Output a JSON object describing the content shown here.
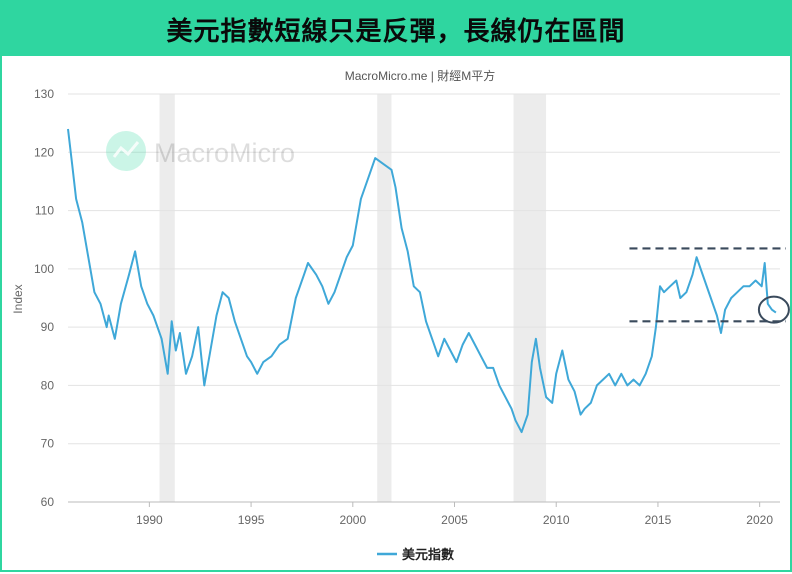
{
  "banner": {
    "title": "美元指數短線只是反彈，長線仍在區間"
  },
  "chart_data": {
    "type": "line",
    "source": "MacroMicro.me | 財經M平方",
    "watermark": "MacroMicro",
    "ylabel": "Index",
    "xlabel": "",
    "ylim": [
      60,
      130
    ],
    "xlim": [
      1986,
      2021
    ],
    "yticks": [
      60,
      70,
      80,
      90,
      100,
      110,
      120,
      130
    ],
    "xticks": [
      1990,
      1995,
      2000,
      2005,
      2010,
      2015,
      2020
    ],
    "recessions": [
      [
        1990.5,
        1991.25
      ],
      [
        2001.2,
        2001.9
      ],
      [
        2007.9,
        2009.5
      ]
    ],
    "legend": "bottom-center",
    "reference_lines": [
      103.5,
      91
    ],
    "highlight": {
      "x": 2020.7,
      "y": 93
    },
    "series": [
      {
        "name": "美元指數",
        "color": "#3fa8d8",
        "x": [
          1986.0,
          1986.2,
          1986.4,
          1986.7,
          1987.0,
          1987.3,
          1987.6,
          1987.9,
          1988.0,
          1988.3,
          1988.6,
          1989.0,
          1989.3,
          1989.6,
          1989.9,
          1990.2,
          1990.6,
          1990.9,
          1991.1,
          1991.3,
          1991.5,
          1991.8,
          1992.1,
          1992.4,
          1992.7,
          1993.0,
          1993.3,
          1993.6,
          1993.9,
          1994.2,
          1994.5,
          1994.8,
          1995.0,
          1995.3,
          1995.6,
          1996.0,
          1996.4,
          1996.8,
          1997.2,
          1997.6,
          1997.8,
          1998.2,
          1998.5,
          1998.8,
          1999.1,
          1999.4,
          1999.7,
          2000.0,
          2000.4,
          2000.8,
          2001.1,
          2001.5,
          2001.9,
          2002.1,
          2002.4,
          2002.7,
          2003.0,
          2003.3,
          2003.6,
          2003.9,
          2004.2,
          2004.5,
          2004.8,
          2005.1,
          2005.4,
          2005.7,
          2006.0,
          2006.3,
          2006.6,
          2006.9,
          2007.2,
          2007.5,
          2007.8,
          2008.0,
          2008.3,
          2008.6,
          2008.8,
          2009.0,
          2009.2,
          2009.5,
          2009.8,
          2010.0,
          2010.3,
          2010.6,
          2010.9,
          2011.2,
          2011.4,
          2011.7,
          2012.0,
          2012.3,
          2012.6,
          2012.9,
          2013.2,
          2013.5,
          2013.8,
          2014.1,
          2014.4,
          2014.7,
          2014.9,
          2015.1,
          2015.3,
          2015.6,
          2015.9,
          2016.1,
          2016.4,
          2016.7,
          2016.9,
          2017.0,
          2017.3,
          2017.6,
          2017.9,
          2018.1,
          2018.3,
          2018.6,
          2018.9,
          2019.2,
          2019.5,
          2019.8,
          2020.1,
          2020.25,
          2020.4,
          2020.6,
          2020.8
        ],
        "values": [
          124,
          118,
          112,
          108,
          102,
          96,
          94,
          90,
          92,
          88,
          94,
          99,
          103,
          97,
          94,
          92,
          88,
          82,
          91,
          86,
          89,
          82,
          85,
          90,
          80,
          86,
          92,
          96,
          95,
          91,
          88,
          85,
          84,
          82,
          84,
          85,
          87,
          88,
          95,
          99,
          101,
          99,
          97,
          94,
          96,
          99,
          102,
          104,
          112,
          116,
          119,
          118,
          117,
          114,
          107,
          103,
          97,
          96,
          91,
          88,
          85,
          88,
          86,
          84,
          87,
          89,
          87,
          85,
          83,
          83,
          80,
          78,
          76,
          74,
          72,
          75,
          84,
          88,
          83,
          78,
          77,
          82,
          86,
          81,
          79,
          75,
          76,
          77,
          80,
          81,
          82,
          80,
          82,
          80,
          81,
          80,
          82,
          85,
          90,
          97,
          96,
          97,
          98,
          95,
          96,
          99,
          102,
          101,
          98,
          95,
          92,
          89,
          93,
          95,
          96,
          97,
          97,
          98,
          97,
          101,
          94,
          93,
          92.5
        ]
      }
    ]
  }
}
